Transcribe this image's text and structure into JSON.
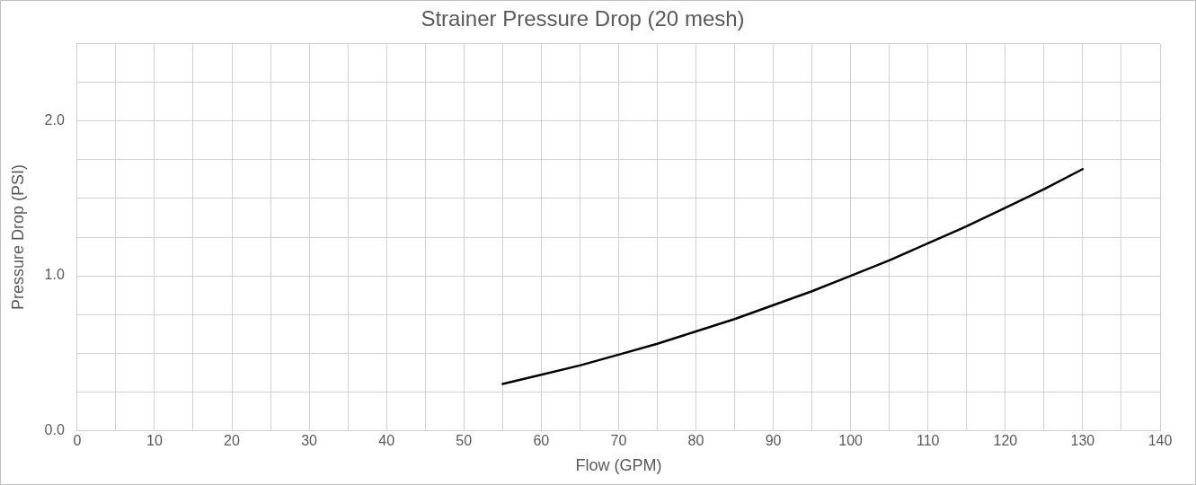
{
  "chart_data": {
    "type": "line",
    "title": "Strainer Pressure Drop (20 mesh)",
    "xlabel": "Flow (GPM)",
    "ylabel": "Pressure Drop (PSI)",
    "x": [
      55,
      60,
      65,
      70,
      75,
      80,
      85,
      90,
      95,
      100,
      105,
      110,
      115,
      120,
      125,
      130
    ],
    "series": [
      {
        "color": "#000000",
        "values": [
          0.3,
          0.36,
          0.42,
          0.49,
          0.56,
          0.64,
          0.72,
          0.81,
          0.9,
          1.0,
          1.1,
          1.21,
          1.32,
          1.44,
          1.56,
          1.69
        ]
      }
    ],
    "xlim": [
      0,
      140
    ],
    "xticks": [
      0,
      {
        "value": 5,
        "label": null
      },
      10,
      {
        "value": 15,
        "label": null
      },
      20,
      {
        "value": 25,
        "label": null
      },
      30,
      {
        "value": 35,
        "label": null
      },
      40,
      {
        "value": 45,
        "label": null
      },
      50,
      {
        "value": 55,
        "label": null
      },
      60,
      {
        "value": 65,
        "label": null
      },
      70,
      {
        "value": 75,
        "label": null
      },
      80,
      {
        "value": 85,
        "label": null
      },
      90,
      {
        "value": 95,
        "label": null
      },
      100,
      {
        "value": 105,
        "label": null
      },
      110,
      {
        "value": 115,
        "label": null
      },
      120,
      {
        "value": 125,
        "label": null
      },
      130,
      {
        "value": 135,
        "label": null
      },
      140
    ],
    "ylim": [
      0,
      2.5
    ],
    "yticks": [
      {
        "value": 0,
        "label": "0.0"
      },
      {
        "value": 0.25,
        "label": null
      },
      {
        "value": 0.5,
        "label": null
      },
      {
        "value": 0.75,
        "label": null
      },
      {
        "value": 1,
        "label": "1.0"
      },
      {
        "value": 1.25,
        "label": null
      },
      {
        "value": 1.5,
        "label": null
      },
      {
        "value": 1.75,
        "label": null
      },
      {
        "value": 2,
        "label": "2.0"
      },
      {
        "value": 2.25,
        "label": null
      },
      {
        "value": 2.5,
        "label": null
      }
    ],
    "grid": true,
    "legend": false,
    "marker": "none",
    "line_style": "solid"
  }
}
